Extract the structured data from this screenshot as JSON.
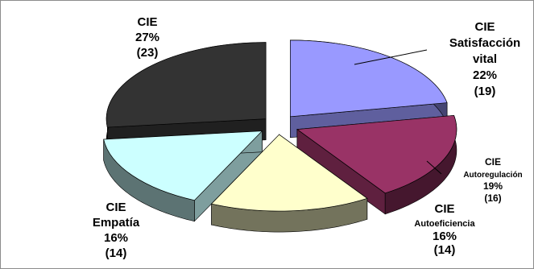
{
  "chart_data": {
    "type": "pie",
    "style": "3d-exploded",
    "slices": [
      {
        "line1": "CIE",
        "line2": "Satisfacción vital",
        "line2b": "",
        "pct_label": "22%",
        "count_label": "(19)",
        "value": 19,
        "color": "#9999ff"
      },
      {
        "line1": "CIE",
        "line2": "Autoregulación",
        "line2b": "",
        "pct_label": "19%",
        "count_label": "(16)",
        "value": 16,
        "color": "#993366"
      },
      {
        "line1": "CIE",
        "line2": "Autoeficiencia",
        "line2b": "",
        "pct_label": "16%",
        "count_label": "(14)",
        "value": 14,
        "color": "#ffffcc"
      },
      {
        "line1": "CIE",
        "line2": "Empatía",
        "line2b": "",
        "pct_label": "16%",
        "count_label": "(14)",
        "value": 14,
        "color": "#ccffff"
      },
      {
        "line1": "CIE",
        "line2": "",
        "line2b": "",
        "pct_label": "27%",
        "count_label": "(23)",
        "value": 23,
        "color": "#333333"
      }
    ]
  }
}
